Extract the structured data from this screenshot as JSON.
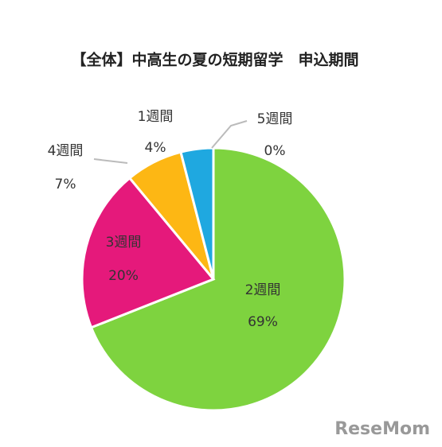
{
  "chart_data": {
    "type": "pie",
    "title": "【全体】中高生の夏の短期留学　申込期間",
    "categories": [
      "2週間",
      "3週間",
      "4週間",
      "1週間",
      "5週間"
    ],
    "values": [
      69,
      20,
      7,
      4,
      0
    ],
    "value_labels": [
      "69%",
      "20%",
      "7%",
      "4%",
      "0%"
    ],
    "colors": [
      "#7ed33f",
      "#e5197b",
      "#fdb714",
      "#1fa8e0",
      "#7030a0"
    ],
    "watermark": "ReseMom"
  }
}
